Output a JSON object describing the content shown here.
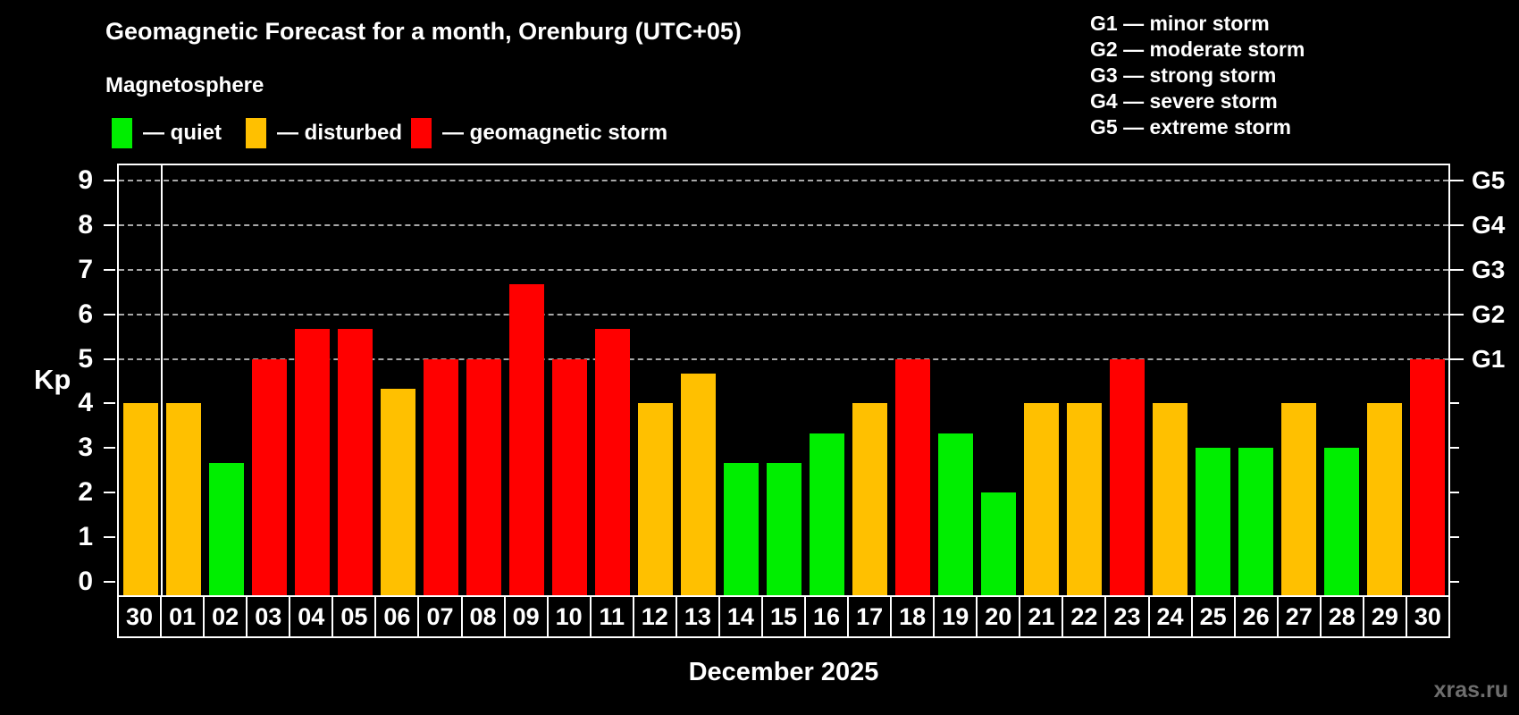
{
  "title": "Geomagnetic Forecast for a month, Orenburg (UTC+05)",
  "subtitle": "Magnetosphere",
  "legend": {
    "quiet": {
      "label": "— quiet",
      "color": "#00ee00"
    },
    "disturbed": {
      "label": "— disturbed",
      "color": "#ffc000"
    },
    "storm": {
      "label": "— geomagnetic storm",
      "color": "#ff0000"
    }
  },
  "g_scale_legend": [
    {
      "code": "G1",
      "label": "G1 — minor storm"
    },
    {
      "code": "G2",
      "label": "G2 — moderate storm"
    },
    {
      "code": "G3",
      "label": "G3 — strong storm"
    },
    {
      "code": "G4",
      "label": "G4 — severe storm"
    },
    {
      "code": "G5",
      "label": "G5 — extreme storm"
    }
  ],
  "axes": {
    "y_label": "Kp",
    "y_ticks": [
      "0",
      "1",
      "2",
      "3",
      "4",
      "5",
      "6",
      "7",
      "8",
      "9"
    ],
    "right_ticks": [
      "G1",
      "G2",
      "G3",
      "G4",
      "G5"
    ],
    "x_label": "December 2025"
  },
  "watermark": "xras.ru",
  "chart_data": {
    "type": "bar",
    "title": "Geomagnetic Forecast for a month, Orenburg (UTC+05)",
    "xlabel": "December 2025",
    "ylabel": "Kp",
    "ylim": [
      0,
      9.4
    ],
    "grid": "dashed horizontal at Kp 5-9",
    "grid_levels": [
      5,
      6,
      7,
      8,
      9
    ],
    "legend_position": "top",
    "right_axis_labels_at": {
      "G1": 5,
      "G2": 6,
      "G3": 7,
      "G4": 8,
      "G5": 9
    },
    "month_separator_after_index": 0,
    "categories": [
      "30",
      "01",
      "02",
      "03",
      "04",
      "05",
      "06",
      "07",
      "08",
      "09",
      "10",
      "11",
      "12",
      "13",
      "14",
      "15",
      "16",
      "17",
      "18",
      "19",
      "20",
      "21",
      "22",
      "23",
      "24",
      "25",
      "26",
      "27",
      "28",
      "29",
      "30"
    ],
    "values": [
      4,
      4,
      2.67,
      5,
      5.67,
      5.67,
      4.33,
      5,
      5,
      6.67,
      5,
      5.67,
      4,
      4.67,
      2.67,
      2.67,
      3.33,
      4,
      5,
      3.33,
      2,
      4,
      4,
      5,
      4,
      3,
      3,
      4,
      3,
      4,
      5
    ],
    "conditions": [
      "disturbed",
      "disturbed",
      "quiet",
      "storm",
      "storm",
      "storm",
      "disturbed",
      "storm",
      "storm",
      "storm",
      "storm",
      "storm",
      "disturbed",
      "disturbed",
      "quiet",
      "quiet",
      "quiet",
      "disturbed",
      "storm",
      "quiet",
      "quiet",
      "disturbed",
      "disturbed",
      "storm",
      "disturbed",
      "quiet",
      "quiet",
      "disturbed",
      "quiet",
      "disturbed",
      "storm"
    ],
    "colors": {
      "quiet": "#00ee00",
      "disturbed": "#ffc000",
      "storm": "#ff0000"
    }
  }
}
